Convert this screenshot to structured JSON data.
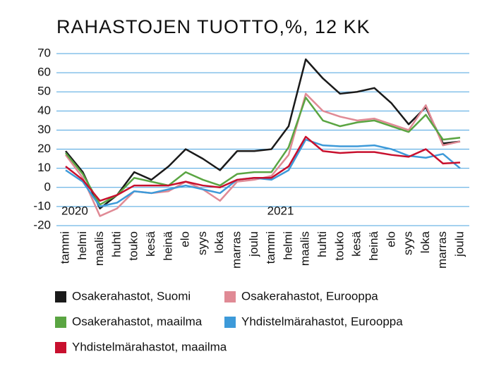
{
  "chart_data": {
    "type": "line",
    "title": "RAHASTOJEN TUOTTO,%, 12 KK",
    "categories": [
      "tammi",
      "helmi",
      "maalis",
      "huhti",
      "touko",
      "kesä",
      "heinä",
      "elo",
      "syys",
      "loka",
      "marras",
      "joulu",
      "tammi",
      "helmi",
      "maalis",
      "huhti",
      "touko",
      "kesä",
      "heinä",
      "elo",
      "syys",
      "loka",
      "marras",
      "joulu"
    ],
    "annotations": [
      "2020",
      "2021"
    ],
    "series": [
      {
        "name": "Osakerahastot, Suomi",
        "color": "#1a1a1a",
        "values": [
          19,
          8,
          -11,
          -4,
          8,
          4,
          11,
          20,
          15,
          9,
          19,
          19,
          20,
          32,
          67,
          57,
          49,
          50,
          52,
          44,
          33,
          42,
          23,
          24
        ]
      },
      {
        "name": "Osakerahastot, Eurooppa",
        "color": "#e08a95",
        "values": [
          17,
          5,
          -15,
          -11,
          -2,
          -3,
          -2,
          3,
          -1,
          -7,
          3,
          4,
          6,
          17,
          49,
          40,
          37,
          35,
          36,
          33,
          30,
          43,
          22,
          24
        ]
      },
      {
        "name": "Osakerahastot, maailma",
        "color": "#5aa542",
        "values": [
          18,
          7,
          -9,
          -4,
          5,
          3,
          1,
          8,
          4,
          1,
          7,
          8,
          8,
          21,
          47,
          35,
          32,
          34,
          35,
          32,
          29,
          38,
          25,
          26
        ]
      },
      {
        "name": "Yhdistelmärahastot, Eurooppa",
        "color": "#3d9ad9",
        "values": [
          9,
          3,
          -10,
          -8,
          -2,
          -3,
          -1,
          1,
          -1,
          -3,
          4,
          5,
          4,
          9,
          25,
          22,
          21.5,
          21.5,
          22,
          20,
          16.5,
          15.5,
          17.5,
          10
        ]
      },
      {
        "name": "Yhdistelmärahastot, maailma",
        "color": "#c8102e",
        "values": [
          11,
          4,
          -7,
          -4,
          1,
          1,
          1,
          3,
          1,
          0,
          4,
          5,
          5,
          11,
          26.5,
          19,
          18,
          18.5,
          18.5,
          17,
          16,
          20,
          12.5,
          13
        ]
      }
    ],
    "ylim": [
      -20,
      70
    ],
    "yticks": [
      -20,
      -10,
      0,
      10,
      20,
      30,
      40,
      50,
      60,
      70
    ],
    "grid": true
  }
}
